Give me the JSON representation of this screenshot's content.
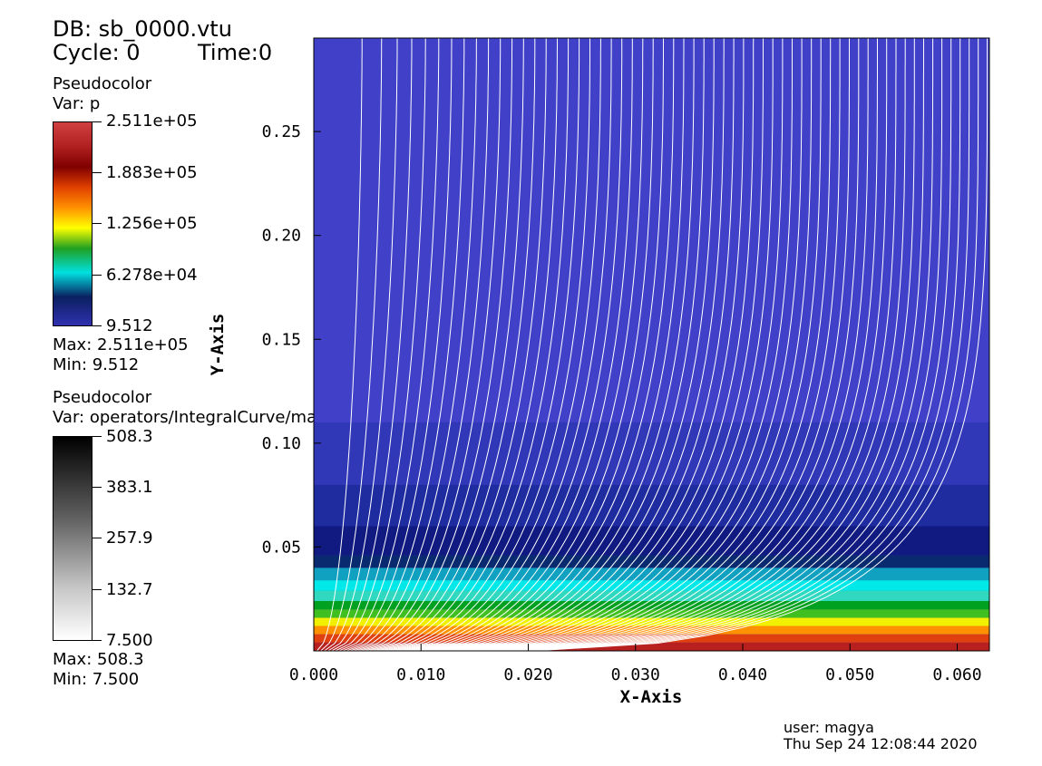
{
  "header": {
    "db_label": "DB: sb_0000.vtu",
    "cycle_label": "Cycle: 0",
    "time_label": "Time:0"
  },
  "legend_pressure": {
    "title": "Pseudocolor",
    "var": "Var: p",
    "labels": [
      "2.511e+05",
      "1.883e+05",
      "1.256e+05",
      "6.278e+04",
      "9.512"
    ],
    "max": "Max:  2.511e+05",
    "min": "Min:  9.512"
  },
  "legend_magfield": {
    "title": "Pseudocolor",
    "var": "Var: operators/IntegralCurve/magfield",
    "labels": [
      "508.3",
      "383.1",
      "257.9",
      "132.7",
      "7.500"
    ],
    "max": "Max:  508.3",
    "min": "Min:  7.500"
  },
  "footer": {
    "user": "user: magya",
    "date": "Thu Sep 24 12:08:44 2020"
  },
  "colors": {
    "background_field": "#4040c8",
    "curve": "#ffffff",
    "tick_label": "#ffff00"
  },
  "chart_data": {
    "type": "heatmap",
    "xlabel": "X-Axis",
    "ylabel": "Y-Axis",
    "xlim": [
      0.0,
      0.063
    ],
    "ylim": [
      0.0,
      0.295
    ],
    "xticks": [
      {
        "v": 0.0,
        "label": "0.000"
      },
      {
        "v": 0.01,
        "label": "0.010"
      },
      {
        "v": 0.02,
        "label": "0.020"
      },
      {
        "v": 0.03,
        "label": "0.030"
      },
      {
        "v": 0.04,
        "label": "0.040"
      },
      {
        "v": 0.05,
        "label": "0.050"
      },
      {
        "v": 0.06,
        "label": "0.060"
      }
    ],
    "yticks": [
      {
        "v": 0.05,
        "label": "0.05"
      },
      {
        "v": 0.1,
        "label": "0.10"
      },
      {
        "v": 0.15,
        "label": "0.15"
      },
      {
        "v": 0.2,
        "label": "0.20"
      },
      {
        "v": 0.25,
        "label": "0.25"
      }
    ],
    "pressure_bands": [
      {
        "y0": 0.0,
        "y1": 0.004,
        "color": "#b82020"
      },
      {
        "y0": 0.004,
        "y1": 0.008,
        "color": "#e04010"
      },
      {
        "y0": 0.008,
        "y1": 0.012,
        "color": "#ff9000"
      },
      {
        "y0": 0.012,
        "y1": 0.016,
        "color": "#f0f000"
      },
      {
        "y0": 0.016,
        "y1": 0.02,
        "color": "#40c020"
      },
      {
        "y0": 0.02,
        "y1": 0.024,
        "color": "#00a020"
      },
      {
        "y0": 0.024,
        "y1": 0.029,
        "color": "#30d8c0"
      },
      {
        "y0": 0.029,
        "y1": 0.034,
        "color": "#00e8e8"
      },
      {
        "y0": 0.034,
        "y1": 0.04,
        "color": "#10a0c0"
      },
      {
        "y0": 0.04,
        "y1": 0.046,
        "color": "#0a2a70"
      },
      {
        "y0": 0.046,
        "y1": 0.06,
        "color": "#101a80"
      },
      {
        "y0": 0.06,
        "y1": 0.08,
        "color": "#1f2ca0"
      },
      {
        "y0": 0.08,
        "y1": 0.11,
        "color": "#3038b8"
      }
    ],
    "curves": {
      "count": 60,
      "x_start_min": 0.0003,
      "x_start_max": 0.0205,
      "x_top_min": 0.0045,
      "x_top_max": 0.0628
    }
  }
}
